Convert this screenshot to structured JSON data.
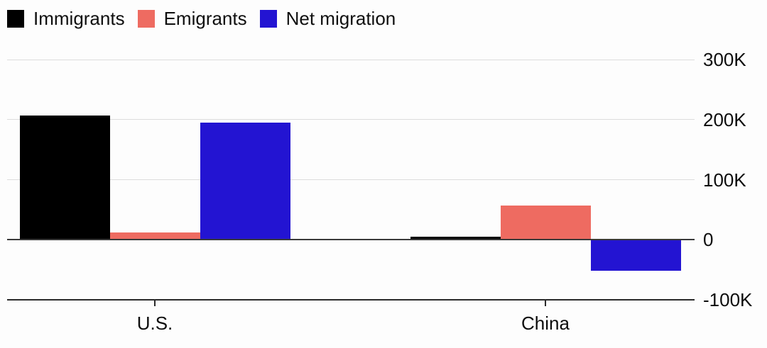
{
  "legend": {
    "items": [
      {
        "label": "Immigrants",
        "color": "#000000"
      },
      {
        "label": "Emigrants",
        "color": "#ee6b61"
      },
      {
        "label": "Net migration",
        "color": "#2314d2"
      }
    ]
  },
  "chart_data": {
    "type": "bar",
    "title": "",
    "categories": [
      "U.S.",
      "China"
    ],
    "series": [
      {
        "name": "Immigrants",
        "color": "#000000",
        "values": [
          207000,
          5000
        ]
      },
      {
        "name": "Emigrants",
        "color": "#ee6b61",
        "values": [
          12000,
          57000
        ]
      },
      {
        "name": "Net migration",
        "color": "#2314d2",
        "values": [
          195000,
          -52000
        ]
      }
    ],
    "yticks": [
      {
        "value": 300000,
        "label": "300K"
      },
      {
        "value": 200000,
        "label": "200K"
      },
      {
        "value": 100000,
        "label": "100K"
      },
      {
        "value": 0,
        "label": "0"
      },
      {
        "value": -100000,
        "label": "-100K"
      }
    ],
    "ylim": [
      -100000,
      300000
    ],
    "grid": "horizontal",
    "legend_position": "top-left",
    "y_axis_side": "right"
  },
  "colors": {
    "background": "#fdfdfd",
    "gridline": "#dcdcdc",
    "zero_line": "#3a3a3a",
    "axis_line": "#2a2a2a",
    "text": "#0d0d0d"
  }
}
